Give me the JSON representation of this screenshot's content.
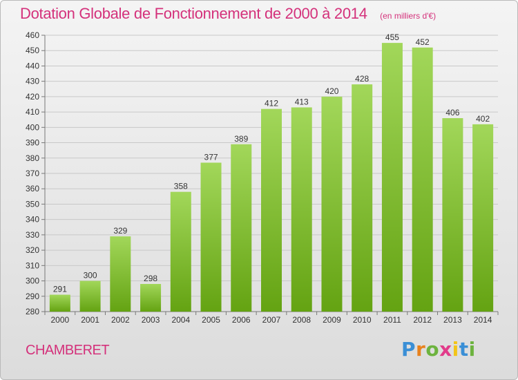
{
  "chart_data": {
    "type": "bar",
    "title": "Dotation Globale de Fonctionnement de 2000 à 2014",
    "subtitle": "(en milliers d'€)",
    "categories": [
      "2000",
      "2001",
      "2002",
      "2003",
      "2004",
      "2005",
      "2006",
      "2007",
      "2008",
      "2009",
      "2010",
      "2011",
      "2012",
      "2013",
      "2014"
    ],
    "values": [
      291,
      300,
      329,
      298,
      358,
      377,
      389,
      412,
      413,
      420,
      428,
      455,
      452,
      406,
      402
    ],
    "ylim": [
      280,
      460
    ],
    "yticks": [
      280,
      290,
      300,
      310,
      320,
      330,
      340,
      350,
      360,
      370,
      380,
      390,
      400,
      410,
      420,
      430,
      440,
      450,
      460
    ],
    "grid": true,
    "xlabel": "",
    "ylabel": "",
    "bar_color": "#8cc63f"
  },
  "footer": {
    "commune": "CHAMBERET",
    "logo_text": "Proxiti"
  },
  "colors": {
    "accent": "#d4317b",
    "bar_light": "#9fd551",
    "bar_dark": "#62a010",
    "logo_p": "#3a8fd6",
    "logo_r": "#e8821e",
    "logo_o": "#6db33f",
    "logo_x": "#e23b8a",
    "logo_i": "#f2c418",
    "logo_t": "#3a8fd6",
    "logo_i2": "#6db33f"
  }
}
